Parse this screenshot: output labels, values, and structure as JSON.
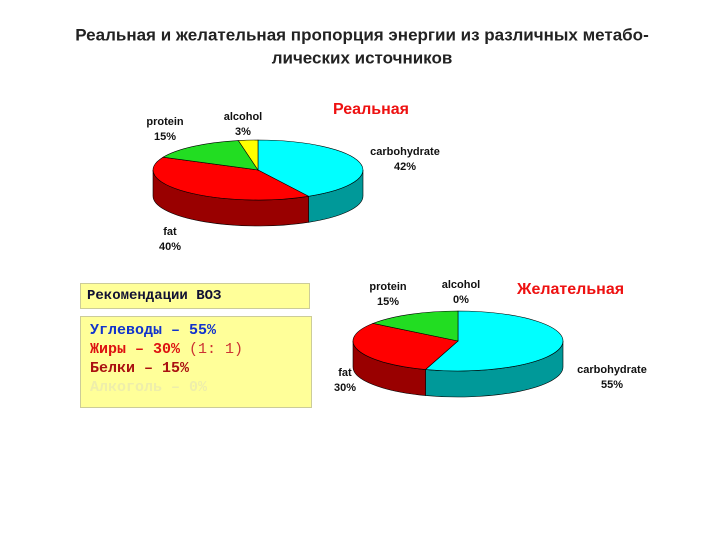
{
  "title_lines": [
    "Реальная и желательная пропорция энергии из различных метабо-",
    "лических источников"
  ],
  "chart_data": [
    {
      "type": "pie3d",
      "title": "Реальная",
      "categories": [
        "carbohydrate",
        "fat",
        "protein",
        "alcohol"
      ],
      "values": [
        42,
        40,
        15,
        3
      ],
      "value_labels": [
        "42%",
        "40%",
        "15%",
        "3%"
      ],
      "colors": [
        "#00ffff",
        "#ff0000",
        "#22dd22",
        "#ffff00"
      ],
      "side_colors": [
        "#009999",
        "#990000",
        "#118811",
        "#999900"
      ]
    },
    {
      "type": "pie3d",
      "title": "Желательная",
      "categories": [
        "carbohydrate",
        "fat",
        "protein",
        "alcohol"
      ],
      "values": [
        55,
        30,
        15,
        0
      ],
      "value_labels": [
        "55%",
        "30%",
        "15%",
        "0%"
      ],
      "colors": [
        "#00ffff",
        "#ff0000",
        "#22dd22",
        "#ffff00"
      ],
      "side_colors": [
        "#009999",
        "#990000",
        "#118811",
        "#999900"
      ]
    }
  ],
  "recommendations": {
    "heading": "Рекомендации ВОЗ",
    "lines": [
      "Углеводы – 55%",
      "Жиры – 30%",
      "(1: 1)",
      "Белки – 15%",
      "Алкоголь – 0%"
    ]
  }
}
